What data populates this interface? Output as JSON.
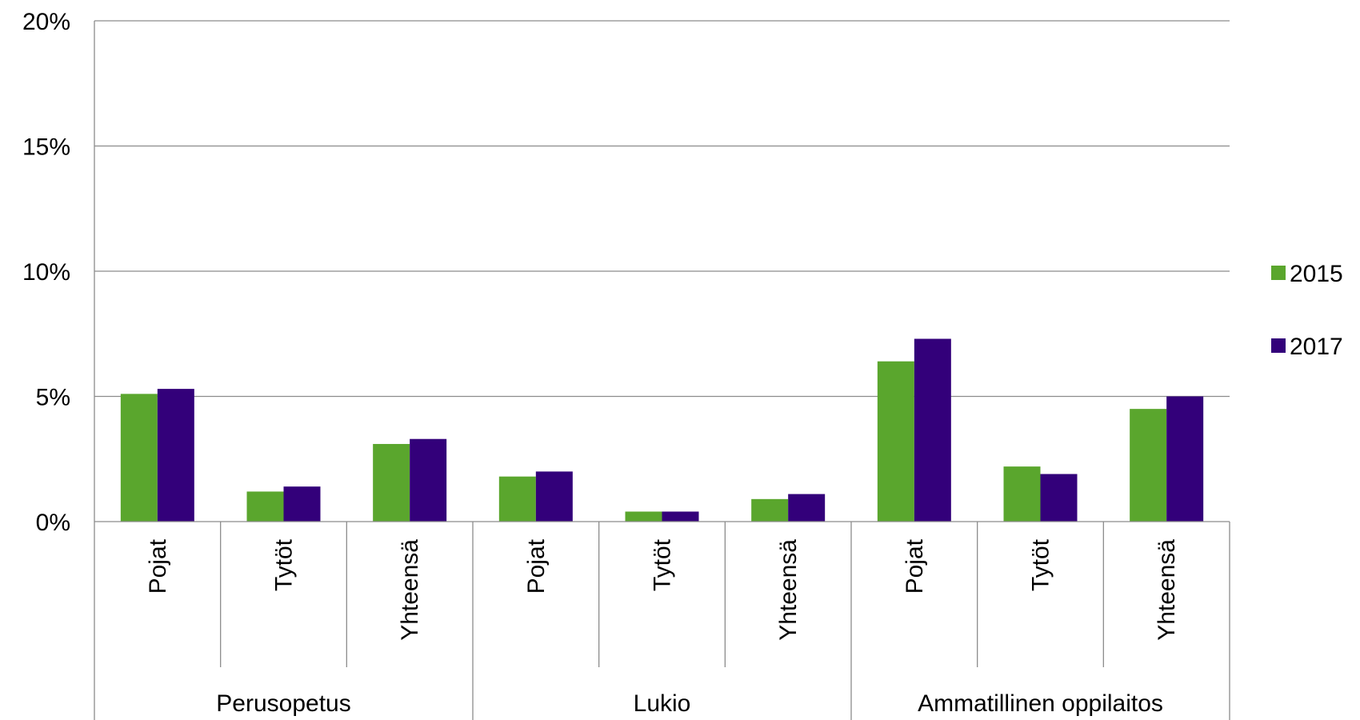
{
  "chart_data": {
    "type": "bar",
    "title": "",
    "xlabel": "",
    "ylabel": "",
    "ylim": [
      0,
      0.2
    ],
    "y_ticks": [
      "0%",
      "5%",
      "10%",
      "15%",
      "20%"
    ],
    "y_tick_values": [
      0,
      0.05,
      0.1,
      0.15,
      0.2
    ],
    "grid": true,
    "legend_position": "right",
    "groups": [
      {
        "label": "Perusopetus",
        "categories": [
          "Pojat",
          "Tytöt",
          "Yhteensä"
        ]
      },
      {
        "label": "Lukio",
        "categories": [
          "Pojat",
          "Tytöt",
          "Yhteensä"
        ]
      },
      {
        "label": "Ammatillinen oppilaitos",
        "categories": [
          "Pojat",
          "Tytöt",
          "Yhteensä"
        ]
      }
    ],
    "categories": [
      "Pojat",
      "Tytöt",
      "Yhteensä",
      "Pojat",
      "Tytöt",
      "Yhteensä",
      "Pojat",
      "Tytöt",
      "Yhteensä"
    ],
    "series": [
      {
        "name": "2015",
        "color": "#5aa62d",
        "values": [
          0.051,
          0.012,
          0.031,
          0.018,
          0.004,
          0.009,
          0.064,
          0.022,
          0.045
        ]
      },
      {
        "name": "2017",
        "color": "#33007a",
        "values": [
          0.053,
          0.014,
          0.033,
          0.02,
          0.004,
          0.011,
          0.073,
          0.019,
          0.05
        ]
      }
    ]
  }
}
